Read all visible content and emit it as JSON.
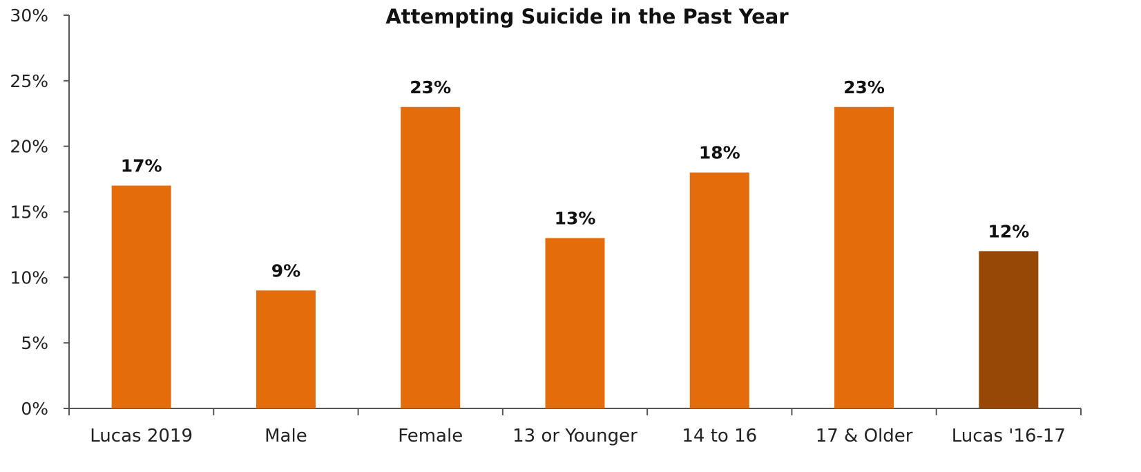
{
  "chart_data": {
    "type": "bar",
    "title": "Attempting Suicide in the Past Year",
    "categories": [
      "Lucas 2019",
      "Male",
      "Female",
      "13 or Younger",
      "14 to 16",
      "17 & Older",
      "Lucas '16-17"
    ],
    "values": [
      17,
      9,
      23,
      13,
      18,
      23,
      12
    ],
    "data_labels": [
      "17%",
      "9%",
      "23%",
      "13%",
      "18%",
      "23%",
      "12%"
    ],
    "ylim": [
      0,
      30
    ],
    "yticks": [
      0,
      5,
      10,
      15,
      20,
      25,
      30
    ],
    "ytick_labels": [
      "0%",
      "5%",
      "10%",
      "15%",
      "20%",
      "25%",
      "30%"
    ],
    "xlabel": "",
    "ylabel": "",
    "grid": false,
    "colors": [
      "#E46C0A",
      "#E46C0A",
      "#E46C0A",
      "#E46C0A",
      "#E46C0A",
      "#E46C0A",
      "#974806"
    ]
  }
}
